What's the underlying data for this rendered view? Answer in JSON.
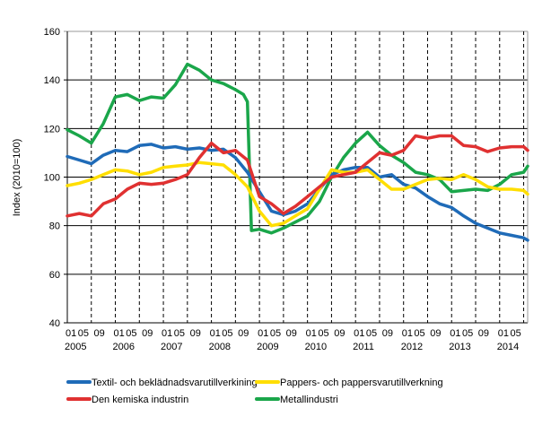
{
  "chart_data": {
    "type": "line",
    "title": "",
    "ylabel": "Index (2010=100)",
    "xlabel": "",
    "ylim": [
      40,
      160
    ],
    "yticks": [
      40,
      60,
      80,
      100,
      120,
      140,
      160
    ],
    "xlim": [
      "2005-01",
      "2014-08"
    ],
    "month_tick_labels": [
      "01",
      "05",
      "09"
    ],
    "year_labels": [
      "2005",
      "2006",
      "2007",
      "2008",
      "2009",
      "2010",
      "2011",
      "2012",
      "2013",
      "2014"
    ],
    "grid": "horizontal solid, vertical dashed",
    "legend_position": "bottom",
    "series": [
      {
        "name": "Textil- och beklädnadsvarutillverkining",
        "color": "#1f6bb8",
        "points": [
          [
            "2005-01",
            108.5
          ],
          [
            "2005-04",
            107
          ],
          [
            "2005-07",
            105.5
          ],
          [
            "2005-10",
            109
          ],
          [
            "2006-01",
            111
          ],
          [
            "2006-04",
            110.5
          ],
          [
            "2006-07",
            113
          ],
          [
            "2006-10",
            113.5
          ],
          [
            "2007-01",
            112
          ],
          [
            "2007-04",
            112.5
          ],
          [
            "2007-07",
            111.5
          ],
          [
            "2007-10",
            112
          ],
          [
            "2008-01",
            111
          ],
          [
            "2008-04",
            111.5
          ],
          [
            "2008-07",
            108
          ],
          [
            "2008-10",
            102
          ],
          [
            "2009-01",
            94
          ],
          [
            "2009-04",
            86
          ],
          [
            "2009-07",
            84.5
          ],
          [
            "2009-10",
            86
          ],
          [
            "2010-01",
            89
          ],
          [
            "2010-04",
            95
          ],
          [
            "2010-07",
            101
          ],
          [
            "2010-10",
            103
          ],
          [
            "2011-01",
            104
          ],
          [
            "2011-04",
            104
          ],
          [
            "2011-07",
            100
          ],
          [
            "2011-10",
            101
          ],
          [
            "2012-01",
            97
          ],
          [
            "2012-04",
            95.5
          ],
          [
            "2012-07",
            92
          ],
          [
            "2012-10",
            89
          ],
          [
            "2013-01",
            87.5
          ],
          [
            "2013-04",
            84
          ],
          [
            "2013-07",
            81
          ],
          [
            "2013-10",
            79
          ],
          [
            "2014-01",
            77
          ],
          [
            "2014-04",
            76
          ],
          [
            "2014-07",
            75
          ],
          [
            "2014-08",
            74
          ]
        ]
      },
      {
        "name": "Pappers- och pappersvarutillverkning",
        "color": "#ffde00",
        "points": [
          [
            "2005-01",
            96.5
          ],
          [
            "2005-04",
            97.5
          ],
          [
            "2005-07",
            99
          ],
          [
            "2005-10",
            101
          ],
          [
            "2006-01",
            103
          ],
          [
            "2006-04",
            102.5
          ],
          [
            "2006-07",
            101
          ],
          [
            "2006-10",
            102
          ],
          [
            "2007-01",
            104
          ],
          [
            "2007-04",
            104.5
          ],
          [
            "2007-07",
            105
          ],
          [
            "2007-10",
            106
          ],
          [
            "2008-01",
            105.5
          ],
          [
            "2008-04",
            105
          ],
          [
            "2008-07",
            101
          ],
          [
            "2008-10",
            96
          ],
          [
            "2009-01",
            86
          ],
          [
            "2009-04",
            80
          ],
          [
            "2009-07",
            81
          ],
          [
            "2009-10",
            84
          ],
          [
            "2010-01",
            87
          ],
          [
            "2010-04",
            95
          ],
          [
            "2010-07",
            103
          ],
          [
            "2010-10",
            102
          ],
          [
            "2011-01",
            102
          ],
          [
            "2011-04",
            103
          ],
          [
            "2011-07",
            99
          ],
          [
            "2011-10",
            95
          ],
          [
            "2012-01",
            95
          ],
          [
            "2012-04",
            97
          ],
          [
            "2012-07",
            99
          ],
          [
            "2012-10",
            99.5
          ],
          [
            "2013-01",
            99
          ],
          [
            "2013-04",
            101
          ],
          [
            "2013-07",
            99
          ],
          [
            "2013-10",
            96
          ],
          [
            "2014-01",
            95
          ],
          [
            "2014-04",
            95
          ],
          [
            "2014-07",
            94.5
          ],
          [
            "2014-08",
            93
          ]
        ]
      },
      {
        "name": "Den kemiska industrin",
        "color": "#e03131",
        "points": [
          [
            "2005-01",
            84
          ],
          [
            "2005-04",
            85
          ],
          [
            "2005-07",
            84
          ],
          [
            "2005-10",
            89
          ],
          [
            "2006-01",
            91
          ],
          [
            "2006-04",
            95
          ],
          [
            "2006-07",
            97.5
          ],
          [
            "2006-10",
            97
          ],
          [
            "2007-01",
            97.5
          ],
          [
            "2007-04",
            99
          ],
          [
            "2007-07",
            101
          ],
          [
            "2007-10",
            108
          ],
          [
            "2008-01",
            114
          ],
          [
            "2008-04",
            110
          ],
          [
            "2008-07",
            111
          ],
          [
            "2008-10",
            107
          ],
          [
            "2009-01",
            92
          ],
          [
            "2009-04",
            89
          ],
          [
            "2009-07",
            85
          ],
          [
            "2009-10",
            88
          ],
          [
            "2010-01",
            92
          ],
          [
            "2010-04",
            96
          ],
          [
            "2010-07",
            100
          ],
          [
            "2010-10",
            101
          ],
          [
            "2011-01",
            102
          ],
          [
            "2011-04",
            106
          ],
          [
            "2011-07",
            110
          ],
          [
            "2011-10",
            109
          ],
          [
            "2012-01",
            111
          ],
          [
            "2012-04",
            117
          ],
          [
            "2012-07",
            116
          ],
          [
            "2012-10",
            117
          ],
          [
            "2013-01",
            117
          ],
          [
            "2013-04",
            113
          ],
          [
            "2013-07",
            112.5
          ],
          [
            "2013-10",
            110.5
          ],
          [
            "2014-01",
            112
          ],
          [
            "2014-04",
            112.5
          ],
          [
            "2014-07",
            112.5
          ],
          [
            "2014-08",
            111
          ]
        ]
      },
      {
        "name": "Metallindustri",
        "color": "#1aa64a",
        "points": [
          [
            "2005-01",
            119.5
          ],
          [
            "2005-04",
            117
          ],
          [
            "2005-07",
            114
          ],
          [
            "2005-10",
            122
          ],
          [
            "2006-01",
            133
          ],
          [
            "2006-04",
            134
          ],
          [
            "2006-07",
            131.5
          ],
          [
            "2006-10",
            133
          ],
          [
            "2007-01",
            132.5
          ],
          [
            "2007-04",
            138
          ],
          [
            "2007-07",
            146.5
          ],
          [
            "2007-10",
            144
          ],
          [
            "2008-01",
            140
          ],
          [
            "2008-04",
            138.5
          ],
          [
            "2008-07",
            136
          ],
          [
            "2008-09",
            134
          ],
          [
            "2008-10",
            131
          ],
          [
            "2008-11",
            78
          ],
          [
            "2009-01",
            78.5
          ],
          [
            "2009-04",
            77
          ],
          [
            "2009-07",
            79
          ],
          [
            "2009-10",
            81.5
          ],
          [
            "2010-01",
            84
          ],
          [
            "2010-04",
            90
          ],
          [
            "2010-07",
            100
          ],
          [
            "2010-10",
            108
          ],
          [
            "2011-01",
            114
          ],
          [
            "2011-04",
            118.5
          ],
          [
            "2011-07",
            113
          ],
          [
            "2011-10",
            109
          ],
          [
            "2012-01",
            106
          ],
          [
            "2012-04",
            102
          ],
          [
            "2012-07",
            101
          ],
          [
            "2012-10",
            99
          ],
          [
            "2013-01",
            94
          ],
          [
            "2013-04",
            94.5
          ],
          [
            "2013-07",
            95
          ],
          [
            "2013-10",
            94.5
          ],
          [
            "2014-01",
            97
          ],
          [
            "2014-04",
            101
          ],
          [
            "2014-07",
            102
          ],
          [
            "2014-08",
            104.5
          ]
        ]
      }
    ]
  }
}
